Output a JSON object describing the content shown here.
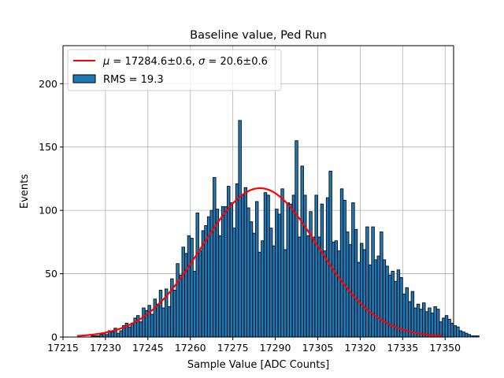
{
  "chart_data": {
    "type": "bar",
    "title": "Baseline value, Ped Run",
    "xlabel": "Sample Value [ADC Counts]",
    "ylabel": "Events",
    "xlim": [
      17215,
      17353
    ],
    "ylim": [
      0,
      230
    ],
    "xticks": [
      17215,
      17230,
      17245,
      17260,
      17275,
      17290,
      17305,
      17320,
      17335,
      17350
    ],
    "yticks": [
      0,
      50,
      100,
      150,
      200
    ],
    "grid": true,
    "legend_position": "top-left",
    "histogram": {
      "name": "RMS = 19.3",
      "color": "#1f77b4",
      "edgecolor": "#000000",
      "x_start": 17223,
      "bin_width": 1,
      "counts": [
        0,
        0,
        1,
        1,
        1,
        2,
        3,
        2,
        5,
        4,
        7,
        3,
        5,
        9,
        11,
        8,
        11,
        15,
        17,
        12,
        23,
        21,
        25,
        18,
        30,
        26,
        37,
        23,
        38,
        24,
        46,
        37,
        58,
        49,
        71,
        66,
        80,
        78,
        52,
        98,
        68,
        84,
        88,
        95,
        100,
        126,
        101,
        80,
        103,
        103,
        119,
        106,
        86,
        121,
        171,
        112,
        118,
        102,
        91,
        82,
        107,
        67,
        76,
        114,
        112,
        86,
        72,
        101,
        97,
        117,
        69,
        106,
        105,
        112,
        155,
        79,
        135,
        112,
        80,
        99,
        79,
        112,
        79,
        105,
        68,
        110,
        131,
        75,
        76,
        68,
        117,
        108,
        83,
        73,
        106,
        85,
        59,
        74,
        69,
        87,
        57,
        87,
        61,
        64,
        83,
        61,
        56,
        49,
        52,
        44,
        53,
        47,
        34,
        39,
        28,
        36,
        23,
        26,
        22,
        27,
        20,
        23,
        19,
        24,
        22,
        12,
        15,
        17,
        14,
        11,
        9,
        8,
        5,
        4,
        3,
        2,
        1,
        1,
        1,
        0
      ]
    },
    "fit": {
      "name": "$\\mu = 17284.6 \\pm 0.6$, $\\sigma = 20.6 \\pm 0.6$",
      "legend_label": {
        "mu_sym": "μ",
        "mu_eq": " = 17284.6±0.6, ",
        "sigma_sym": "σ",
        "sigma_eq": " = 20.6±0.6"
      },
      "type": "gaussian",
      "mu": 17284.6,
      "sigma": 20.6,
      "amplitude": 117.5,
      "x_range": [
        17220,
        17349
      ],
      "color": "#ff0000"
    }
  }
}
